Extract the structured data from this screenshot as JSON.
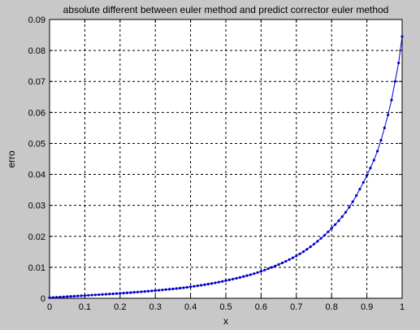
{
  "window": {
    "background": "#c8c8c8"
  },
  "chart_data": {
    "type": "line",
    "title": "absolute different between euler method and predict corrector euler method",
    "xlabel": "x",
    "ylabel": "erro",
    "xlim": [
      0,
      1
    ],
    "ylim": [
      0,
      0.09
    ],
    "x_ticks": [
      0,
      0.1,
      0.2,
      0.3,
      0.4,
      0.5,
      0.6,
      0.7,
      0.8,
      0.9,
      1
    ],
    "x_tick_labels": [
      "0",
      "0.1",
      "0.2",
      "0.3",
      "0.4",
      "0.5",
      "0.6",
      "0.7",
      "0.8",
      "0.9",
      "1"
    ],
    "y_ticks": [
      0,
      0.01,
      0.02,
      0.03,
      0.04,
      0.05,
      0.06,
      0.07,
      0.08,
      0.09
    ],
    "y_tick_labels": [
      "0",
      "0.01",
      "0.02",
      "0.03",
      "0.04",
      "0.05",
      "0.06",
      "0.07",
      "0.08",
      "0.09"
    ],
    "grid": true,
    "grid_style": "dashed",
    "marker": "dot",
    "line_color": "#0000cc",
    "series": [
      {
        "x": [
          0,
          0.1,
          0.2,
          0.3,
          0.4,
          0.5,
          0.6,
          0.7,
          0.75,
          0.8,
          0.85,
          0.9,
          0.93,
          0.95,
          0.97,
          0.98,
          0.99,
          1.0
        ],
        "y": [
          0.0002,
          0.0009,
          0.0016,
          0.0025,
          0.0037,
          0.0057,
          0.0087,
          0.0137,
          0.0175,
          0.0226,
          0.0294,
          0.0397,
          0.0475,
          0.055,
          0.064,
          0.07,
          0.076,
          0.0845
        ]
      }
    ]
  }
}
